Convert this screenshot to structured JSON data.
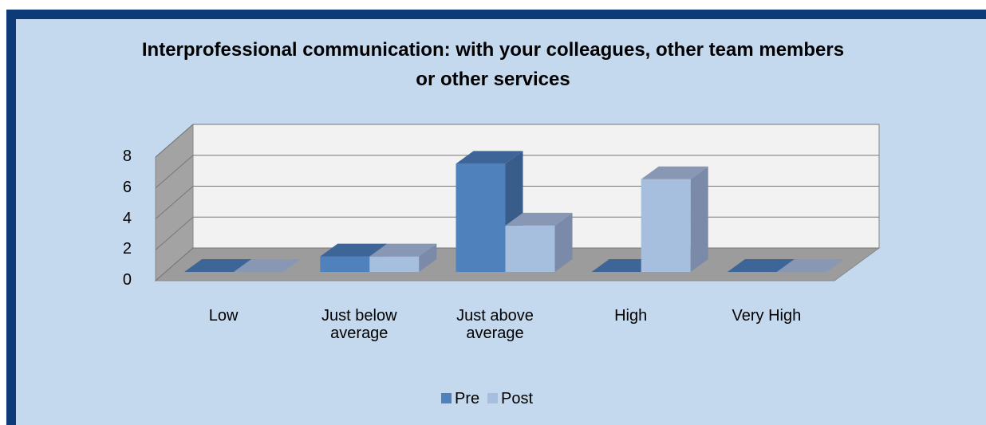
{
  "chart_data": {
    "type": "bar3d",
    "title": "Interprofessional communication: with your colleagues, other team members or other services",
    "categories": [
      "Low",
      "Just below average",
      "Just above average",
      "High",
      "Very High"
    ],
    "series": [
      {
        "name": "Pre",
        "color": "#4f81bd",
        "values": [
          0,
          1,
          7,
          0,
          0
        ]
      },
      {
        "name": "Post",
        "color": "#a7bfde",
        "values": [
          0,
          1,
          3,
          6,
          0
        ]
      }
    ],
    "ylim": [
      0,
      8
    ],
    "yticks": [
      0,
      2,
      4,
      6,
      8
    ],
    "grid": true,
    "legend": "bottom"
  }
}
